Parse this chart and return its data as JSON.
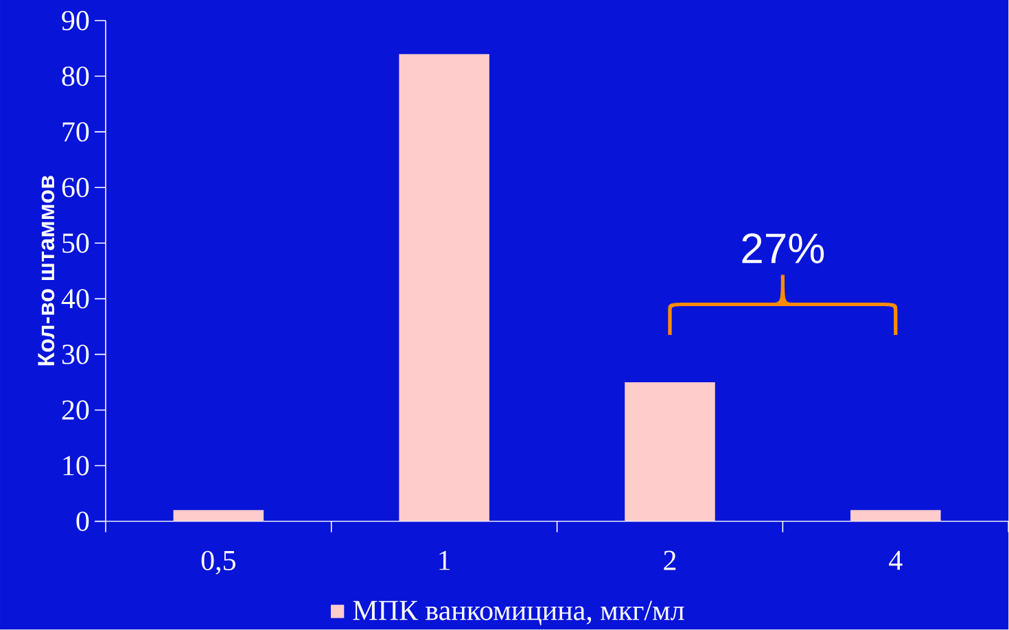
{
  "chart_data": {
    "type": "bar",
    "categories": [
      "0,5",
      "1",
      "2",
      "4"
    ],
    "series": [
      {
        "name": "МПК ванкомицина, мкг/мл",
        "color": "#ffcccc",
        "values": [
          2,
          84,
          25,
          2
        ]
      }
    ],
    "ylabel": "Кол-во штаммов",
    "ylim": [
      0,
      90
    ],
    "yticks": [
      0,
      10,
      20,
      30,
      40,
      50,
      60,
      70,
      80,
      90
    ],
    "annotations": [
      "27%"
    ],
    "legend": "bottom",
    "grid": false
  }
}
